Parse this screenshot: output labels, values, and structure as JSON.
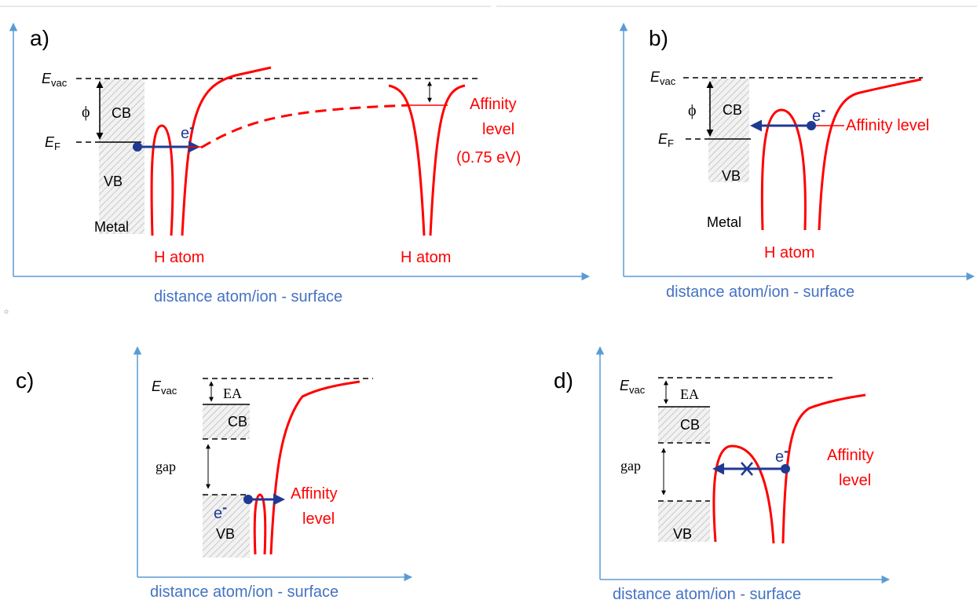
{
  "colors": {
    "axis": "#5b9bd5",
    "axis_label": "#4472c4",
    "potential": "#ff0000",
    "electron": "#1f3a93",
    "text": "#000000",
    "hatch": "#c8c8c8"
  },
  "panels": {
    "a": {
      "label": "a)",
      "e_vac_main": "E",
      "e_vac_sub": "vac",
      "e_f_main": "E",
      "e_f_sub": "F",
      "phi": "ϕ",
      "cb": "CB",
      "vb": "VB",
      "metal": "Metal",
      "electron": "e",
      "electron_sup": "-",
      "h_atom_left": "H atom",
      "h_atom_right": "H atom",
      "affinity_line1": "Affinity",
      "affinity_line2": "level",
      "affinity_line3": "(0.75 eV)",
      "axis_label": "distance atom/ion - surface"
    },
    "b": {
      "label": "b)",
      "e_vac_main": "E",
      "e_vac_sub": "vac",
      "e_f_main": "E",
      "e_f_sub": "F",
      "phi": "ϕ",
      "cb": "CB",
      "vb": "VB",
      "metal": "Metal",
      "electron": "e",
      "electron_sup": "-",
      "affinity": "Affinity level",
      "h_atom": "H atom",
      "axis_label": "distance atom/ion - surface"
    },
    "c": {
      "label": "c)",
      "e_vac_main": "E",
      "e_vac_sub": "vac",
      "ea": "EA",
      "cb": "CB",
      "gap": "gap",
      "vb": "VB",
      "electron": "e",
      "electron_sup": "-",
      "affinity_line1": "Affinity",
      "affinity_line2": "level",
      "axis_label": "distance atom/ion - surface"
    },
    "d": {
      "label": "d)",
      "e_vac_main": "E",
      "e_vac_sub": "vac",
      "ea": "EA",
      "cb": "CB",
      "gap": "gap",
      "vb": "VB",
      "electron": "e",
      "electron_sup": "-",
      "affinity_line1": "Affinity",
      "affinity_line2": "level",
      "axis_label": "distance atom/ion - surface"
    }
  }
}
